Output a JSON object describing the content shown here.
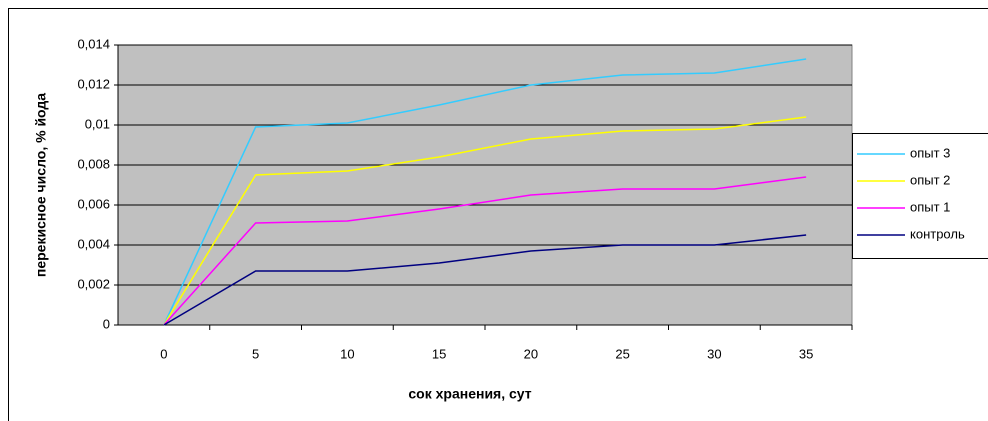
{
  "chart_data": {
    "type": "line",
    "y_label": "перекисное число, % йода",
    "x_label": "сок хранения, сут",
    "x": [
      0,
      5,
      10,
      15,
      20,
      25,
      30,
      35
    ],
    "xlim": [
      -2.5,
      37.5
    ],
    "xticks": [
      0,
      5,
      10,
      15,
      20,
      25,
      30,
      35
    ],
    "ylim": [
      0,
      0.014
    ],
    "yticks": [
      0,
      {
        "value": 0.002,
        "label": "0,002"
      },
      {
        "value": 0.004,
        "label": "0,004"
      },
      {
        "value": 0.006,
        "label": "0,006"
      },
      {
        "value": 0.008,
        "label": "0,008"
      },
      {
        "value": 0.01,
        "label": "0,01"
      },
      {
        "value": 0.012,
        "label": "0,012"
      },
      {
        "value": 0.014,
        "label": "0,014"
      }
    ],
    "grid": true,
    "legend": "right",
    "series": [
      {
        "name": "опыт 3",
        "color": "#33ccff",
        "values": [
          0,
          0.0099,
          0.0101,
          0.011,
          0.012,
          0.0125,
          0.0126,
          0.0133
        ]
      },
      {
        "name": "опыт 2",
        "color": "#ffff00",
        "values": [
          0,
          0.0075,
          0.0077,
          0.0084,
          0.0093,
          0.0097,
          0.0098,
          0.0104
        ]
      },
      {
        "name": "опыт 1",
        "color": "#ff00ff",
        "values": [
          0,
          0.0051,
          0.0052,
          0.0058,
          0.0065,
          0.0068,
          0.0068,
          0.0074
        ]
      },
      {
        "name": "контроль",
        "color": "#000080",
        "values": [
          0,
          0.0027,
          0.0027,
          0.0031,
          0.0037,
          0.004,
          0.004,
          0.0045
        ]
      }
    ]
  }
}
